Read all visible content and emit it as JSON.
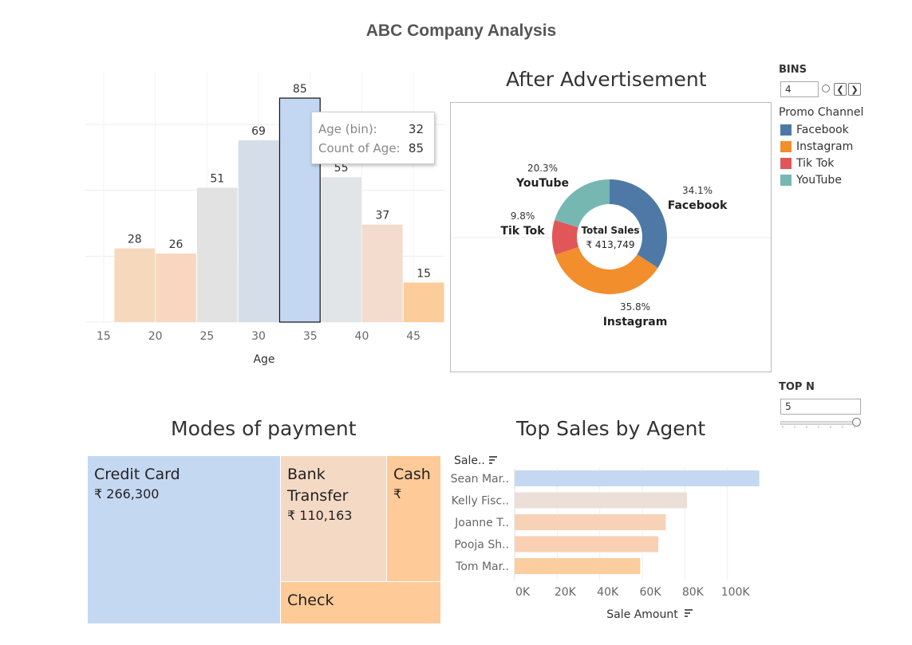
{
  "dashboard": {
    "title": "ABC Company Analysis"
  },
  "age_chart": {
    "xlabel": "Age",
    "tooltip": {
      "bin_label": "Age (bin):",
      "bin_value": "32",
      "count_label": "Count of Age:",
      "count_value": "85"
    }
  },
  "ad_chart": {
    "title": "After Advertisement",
    "center_label": "Total Sales",
    "center_value": "₹ 413,749"
  },
  "controls": {
    "bins_label": "BINS",
    "bins_value": "4",
    "promo_title": "Promo Channel",
    "legend": [
      {
        "label": "Facebook",
        "color": "#4e79a7"
      },
      {
        "label": "Instagram",
        "color": "#f28e2b"
      },
      {
        "label": "Tik Tok",
        "color": "#e15759"
      },
      {
        "label": "YouTube",
        "color": "#76b7b2"
      }
    ],
    "topn_label": "TOP N",
    "topn_value": "5"
  },
  "payment": {
    "title": "Modes of payment",
    "cells": [
      {
        "label": "Credit Card",
        "value": "₹ 266,300",
        "color": "#c5d8f2"
      },
      {
        "label": "Bank Transfer",
        "value": "₹ 110,163",
        "color": "#f4d9c5"
      },
      {
        "label": "Cash",
        "value": "₹",
        "color": "#fdca98"
      },
      {
        "label": "Check",
        "value": "",
        "color": "#fdca98"
      }
    ]
  },
  "agents": {
    "title": "Top Sales by Agent",
    "row_header": "Sale..",
    "xlabel": "Sale  Amount"
  },
  "chart_data": [
    {
      "type": "bar",
      "x_ticks": [
        15,
        20,
        25,
        30,
        35,
        40,
        45
      ],
      "bins": [
        {
          "start": 16,
          "value": 28,
          "color": "#f6d9bd"
        },
        {
          "start": 20,
          "value": 26,
          "color": "#f8d6bf"
        },
        {
          "start": 24,
          "value": 51,
          "color": "#e2e2e2"
        },
        {
          "start": 28,
          "value": 69,
          "color": "#d5dde8"
        },
        {
          "start": 32,
          "value": 85,
          "color": "#c3d7f2",
          "selected": true
        },
        {
          "start": 36,
          "value": 55,
          "color": "#e2e5e8"
        },
        {
          "start": 40,
          "value": 37,
          "color": "#f3dccd"
        },
        {
          "start": 44,
          "value": 15,
          "color": "#fdcc9b"
        }
      ],
      "bin_width": 4,
      "xlabel": "Age",
      "ylim": [
        0,
        95
      ]
    },
    {
      "type": "pie",
      "slices": [
        {
          "name": "Facebook",
          "percent": 34.1,
          "label": "34.1%",
          "color": "#4e79a7"
        },
        {
          "name": "Instagram",
          "percent": 35.8,
          "label": "35.8%",
          "color": "#f28e2b"
        },
        {
          "name": "Tik Tok",
          "percent": 9.8,
          "label": "9.8%",
          "color": "#e15759"
        },
        {
          "name": "YouTube",
          "percent": 20.3,
          "label": "20.3%",
          "color": "#76b7b2"
        }
      ]
    },
    {
      "type": "bar",
      "orientation": "horizontal",
      "categories": [
        "Sean Mar..",
        "Kelly Fisc..",
        "Joanne T..",
        "Pooja Sh..",
        "Tom Mar.."
      ],
      "values": [
        115000,
        81000,
        71000,
        67500,
        59000
      ],
      "colors": [
        "#c5d8f2",
        "#ecdfd8",
        "#f8d2b6",
        "#f9d0b3",
        "#fbcd9f"
      ],
      "x_ticks": [
        0,
        20000,
        40000,
        60000,
        80000,
        100000
      ],
      "x_tick_labels": [
        "0K",
        "20K",
        "40K",
        "60K",
        "80K",
        "100K"
      ],
      "xlabel": "Sale  Amount",
      "xlim": [
        0,
        120000
      ]
    }
  ]
}
